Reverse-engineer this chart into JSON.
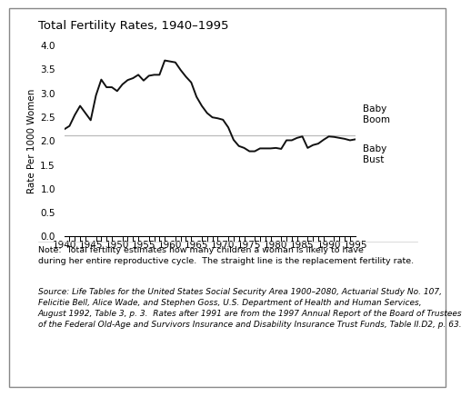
{
  "title": "Total Fertility Rates, 1940–1995",
  "ylabel": "Rate Per 1000 Women",
  "xlim": [
    1940,
    1995
  ],
  "ylim": [
    0.0,
    4.0
  ],
  "yticks": [
    0.0,
    0.5,
    1.0,
    1.5,
    2.0,
    2.5,
    3.0,
    3.5,
    4.0
  ],
  "xticks": [
    1940,
    1945,
    1950,
    1955,
    1960,
    1965,
    1970,
    1975,
    1980,
    1985,
    1990,
    1995
  ],
  "replacement_rate": 2.1,
  "replacement_color": "#bbbbbb",
  "line_color": "#111111",
  "baby_boom_label": "Baby\nBoom",
  "baby_bust_label": "Baby\nBust",
  "note_text": "Note:  Total fertility estimates how many children a woman is likely to have\nduring her entire reproductive cycle.  The straight line is the replacement fertility rate.",
  "source_italic": "Life Tables for the United States Social Security Area 1900–2080,",
  "source_text": "Source: Life Tables for the United States Social Security Area 1900–2080, Actuarial Study No. 107,\nFelicitie Bell, Alice Wade, and Stephen Goss, U.S. Department of Health and Human Services,\nAugust 1992, Table 3, p. 3.  Rates after 1991 are from the 1997 Annual Report of the Board of Trustees\nof the Federal Old-Age and Survivors Insurance and Disability Insurance Trust Funds, Table II.D2, p. 63.",
  "years": [
    1940,
    1941,
    1942,
    1943,
    1944,
    1945,
    1946,
    1947,
    1948,
    1949,
    1950,
    1951,
    1952,
    1953,
    1954,
    1955,
    1956,
    1957,
    1958,
    1959,
    1960,
    1961,
    1962,
    1963,
    1964,
    1965,
    1966,
    1967,
    1968,
    1969,
    1970,
    1971,
    1972,
    1973,
    1974,
    1975,
    1976,
    1977,
    1978,
    1979,
    1980,
    1981,
    1982,
    1983,
    1984,
    1985,
    1986,
    1987,
    1988,
    1989,
    1990,
    1991,
    1992,
    1993,
    1994,
    1995
  ],
  "rates": [
    2.23,
    2.3,
    2.53,
    2.72,
    2.57,
    2.42,
    2.94,
    3.27,
    3.11,
    3.11,
    3.03,
    3.17,
    3.26,
    3.3,
    3.37,
    3.25,
    3.35,
    3.37,
    3.37,
    3.67,
    3.65,
    3.63,
    3.47,
    3.33,
    3.21,
    2.91,
    2.72,
    2.57,
    2.48,
    2.46,
    2.43,
    2.27,
    2.01,
    1.88,
    1.84,
    1.77,
    1.77,
    1.83,
    1.83,
    1.83,
    1.84,
    1.82,
    2.0,
    2.0,
    2.05,
    2.08,
    1.84,
    1.9,
    1.93,
    2.01,
    2.08,
    2.07,
    2.05,
    2.03,
    2.0,
    2.02
  ]
}
